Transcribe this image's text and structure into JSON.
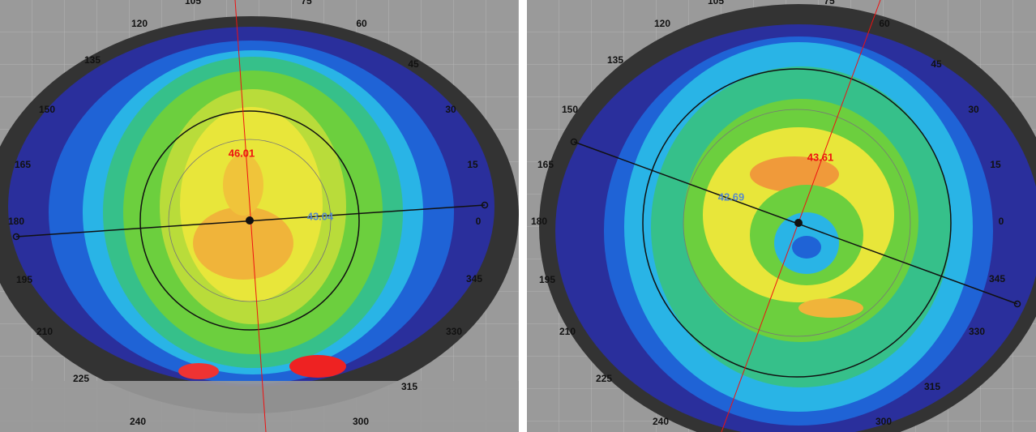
{
  "panels": [
    {
      "angle_labels": [
        "105",
        "75",
        "120",
        "60",
        "135",
        "45",
        "150",
        "30",
        "165",
        "15",
        "180",
        "0",
        "195",
        "345",
        "210",
        "330",
        "225",
        "315",
        "240",
        "300"
      ],
      "steep_k": "46.01",
      "flat_k": "43.04"
    },
    {
      "angle_labels": [
        "105",
        "75",
        "120",
        "60",
        "135",
        "45",
        "150",
        "30",
        "165",
        "15",
        "180",
        "0",
        "195",
        "345",
        "210",
        "330",
        "225",
        "315",
        "240",
        "300"
      ],
      "steep_k": "43.61",
      "flat_k": "42.69"
    }
  ]
}
